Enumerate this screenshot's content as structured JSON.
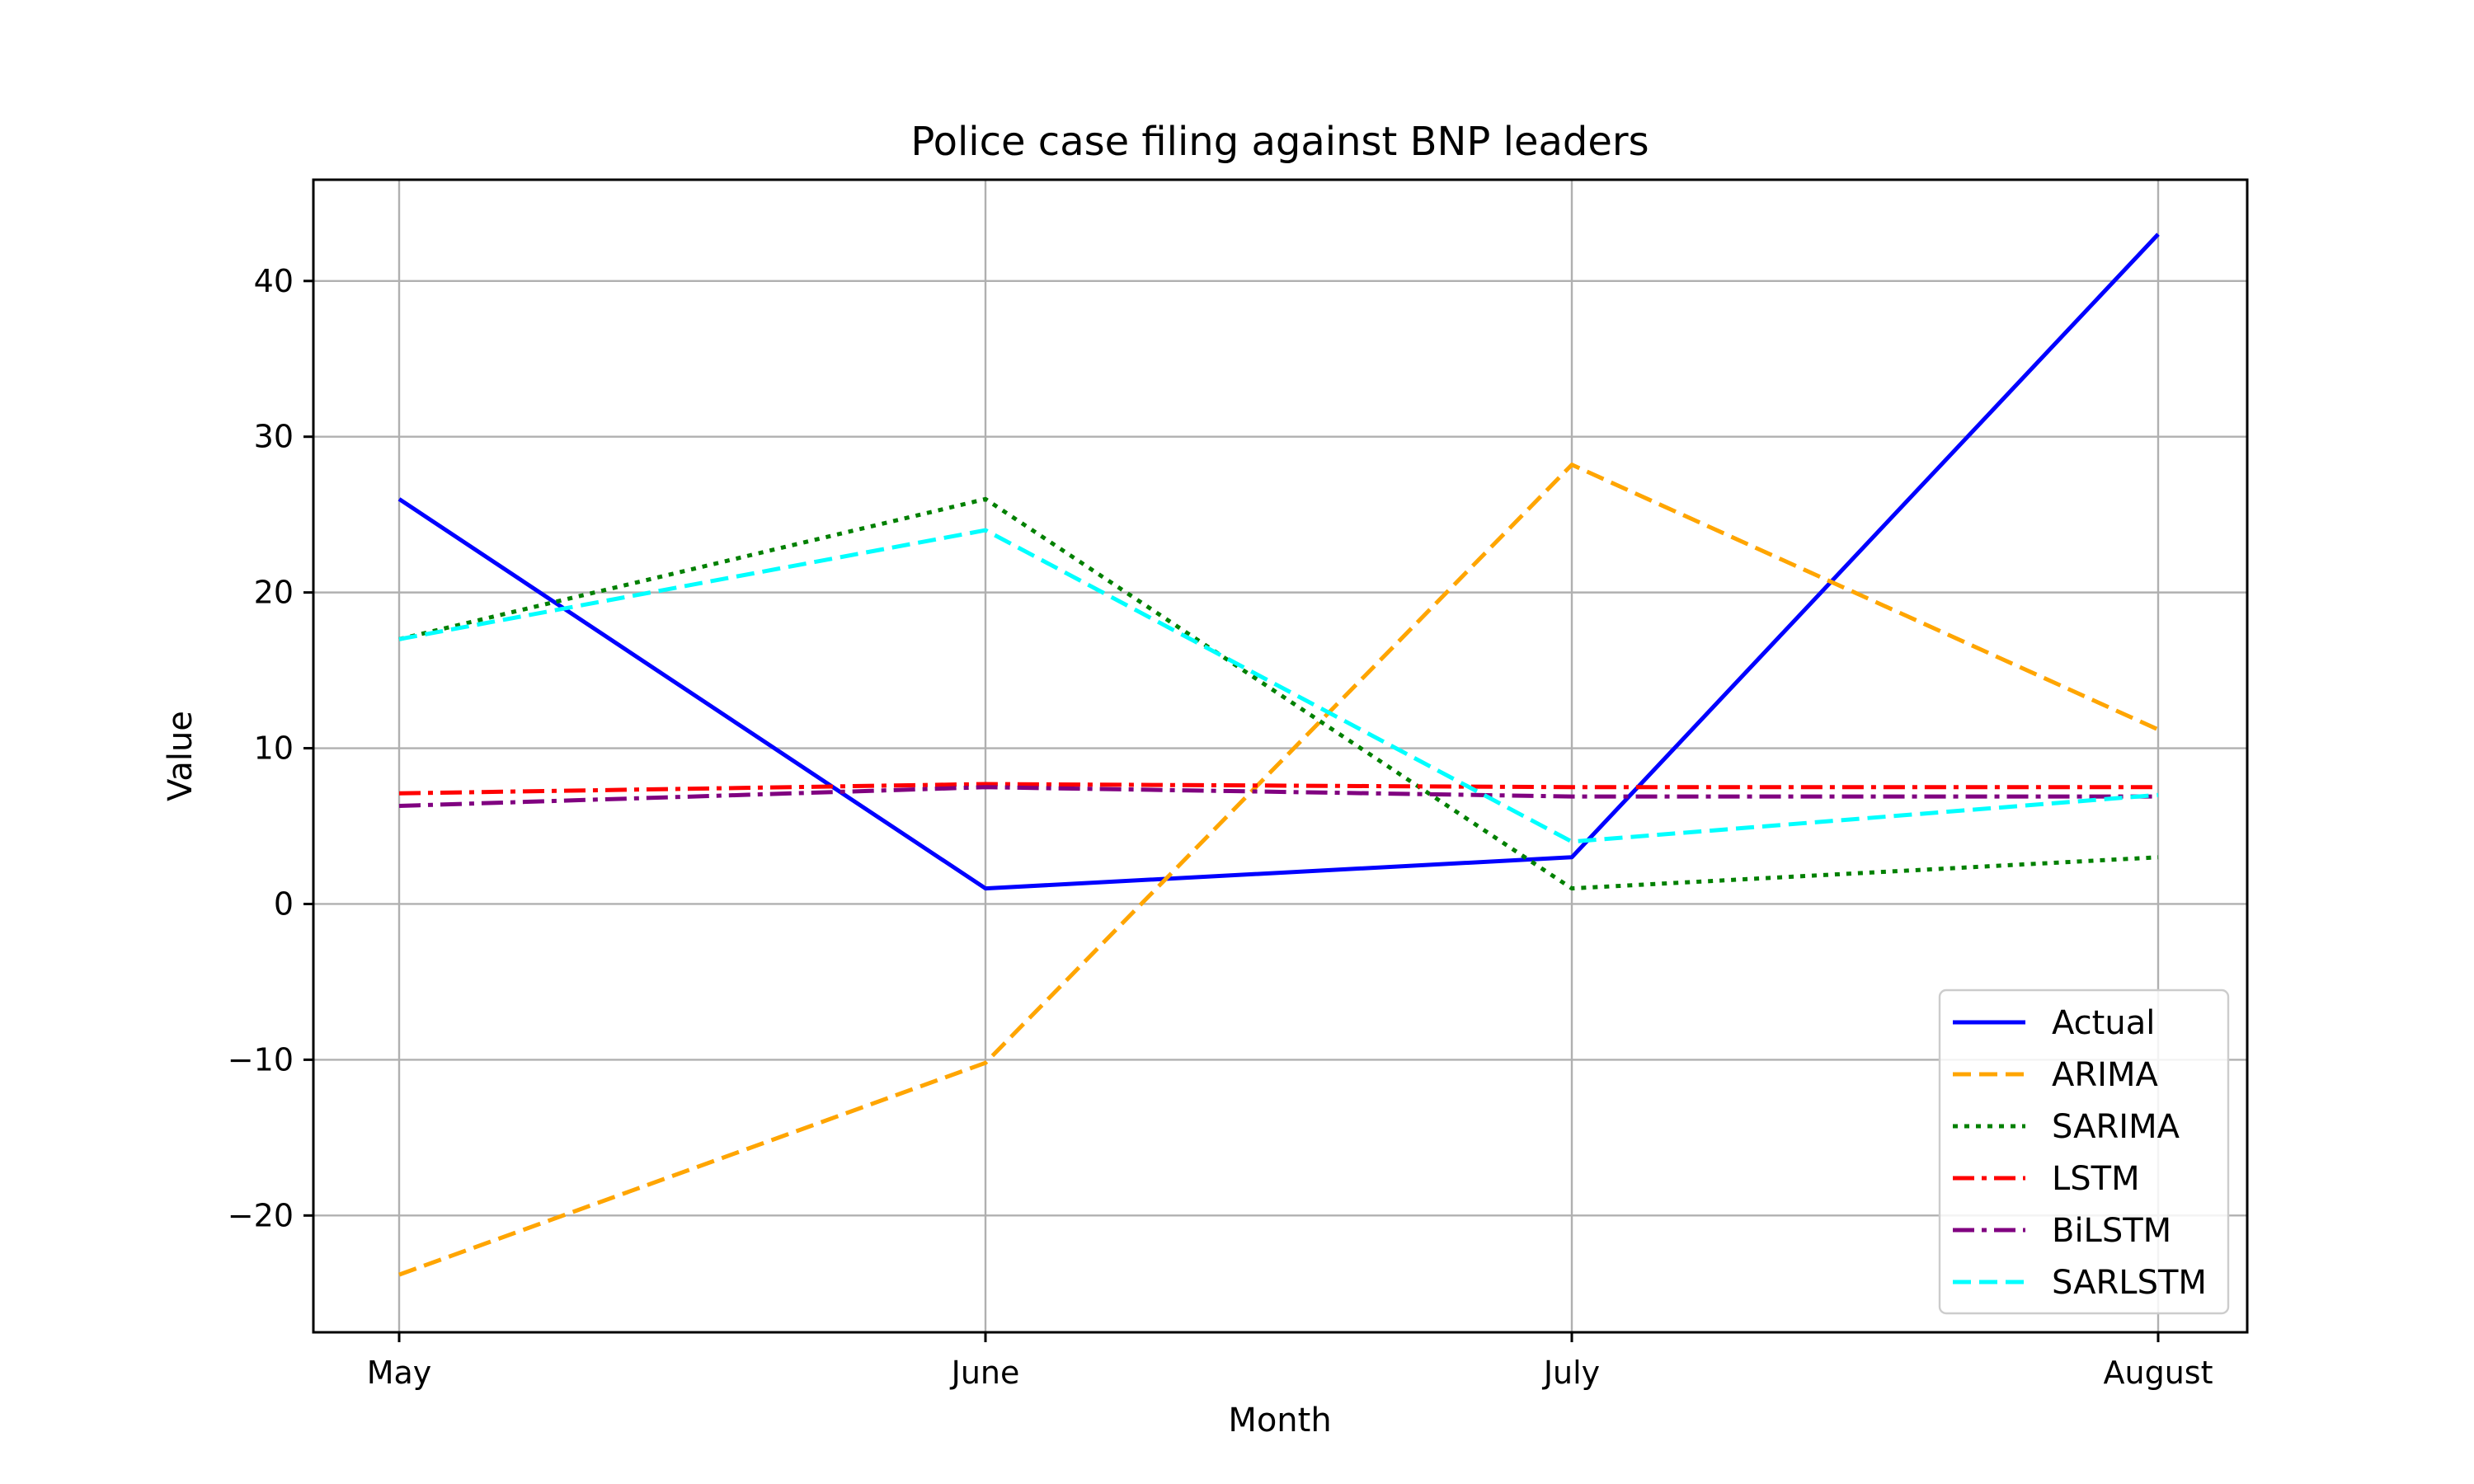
{
  "chart_data": {
    "type": "line",
    "title": "Police case filing against BNP leaders",
    "xlabel": "Month",
    "ylabel": "Value",
    "categories": [
      "May",
      "June",
      "July",
      "August"
    ],
    "ylim": [
      -27.5,
      46.5
    ],
    "yticks": [
      -20,
      -10,
      0,
      10,
      20,
      30,
      40
    ],
    "ytick_labels": [
      "−20",
      "−10",
      "0",
      "10",
      "20",
      "30",
      "40"
    ],
    "grid": true,
    "legend_position": "lower-right",
    "series": [
      {
        "name": "Actual",
        "values": [
          26,
          1,
          3,
          43
        ],
        "color": "#0000ff",
        "dash": "solid"
      },
      {
        "name": "ARIMA",
        "values": [
          -23.8,
          -10.2,
          28.2,
          11.2
        ],
        "color": "#ffa500",
        "dash": "dashed"
      },
      {
        "name": "SARIMA",
        "values": [
          17,
          26,
          1,
          3
        ],
        "color": "#008000",
        "dash": "dotted"
      },
      {
        "name": "LSTM",
        "values": [
          7.1,
          7.7,
          7.5,
          7.5
        ],
        "color": "#ff0000",
        "dash": "dashdot"
      },
      {
        "name": "BiLSTM",
        "values": [
          6.3,
          7.5,
          6.9,
          6.9
        ],
        "color": "#800080",
        "dash": "dashdot"
      },
      {
        "name": "SARLSTM",
        "values": [
          17,
          24,
          4,
          7
        ],
        "color": "#00ffff",
        "dash": "dashed"
      }
    ]
  }
}
